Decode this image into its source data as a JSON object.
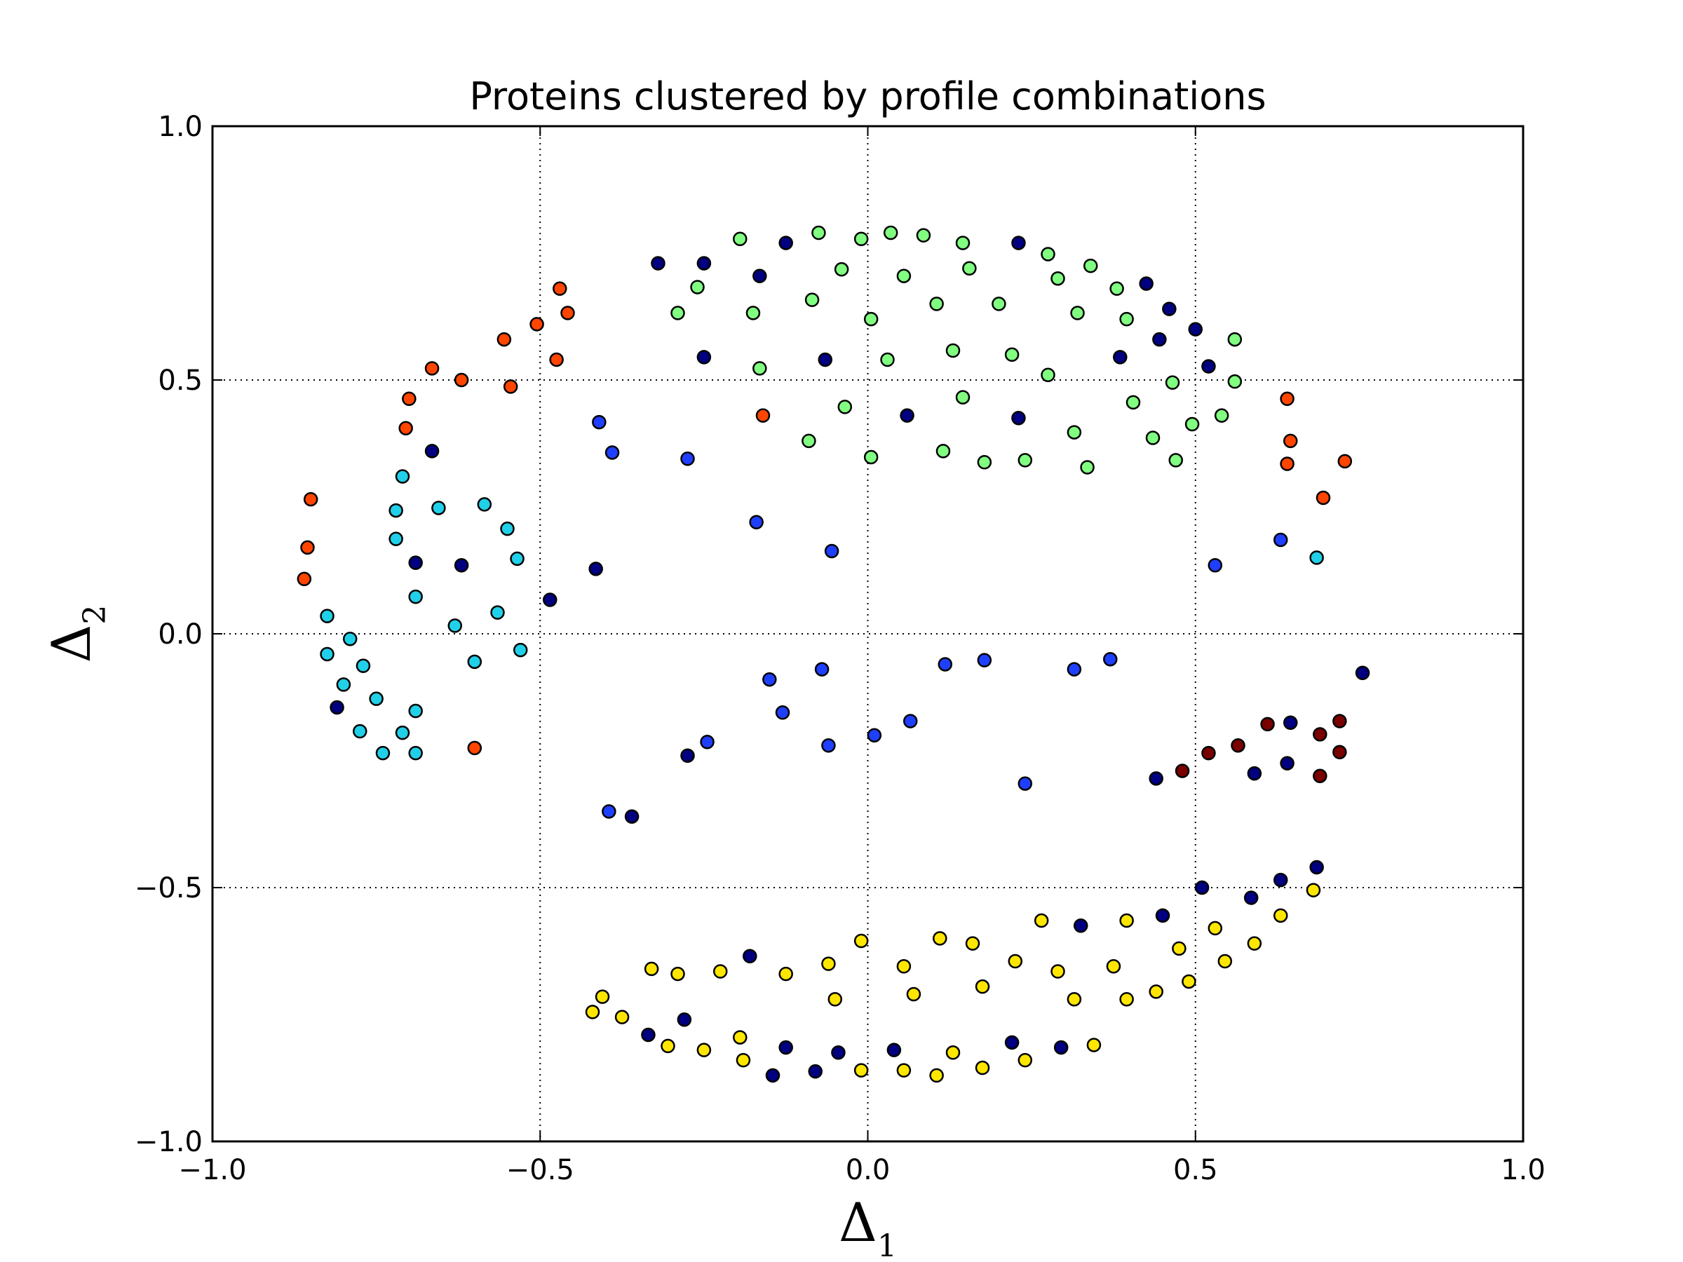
{
  "chart_data": {
    "type": "scatter",
    "title": "Proteins clustered by profile combinations",
    "xlabel": {
      "symbol": "Δ",
      "subscript": "1"
    },
    "ylabel": {
      "symbol": "Δ",
      "subscript": "2"
    },
    "xlim": [
      -1.0,
      1.0
    ],
    "ylim": [
      -1.0,
      1.0
    ],
    "xticks": [
      "−1.0",
      "−0.5",
      "0.0",
      "0.5",
      "1.0"
    ],
    "yticks": [
      "−1.0",
      "−0.5",
      "0.0",
      "0.5",
      "1.0"
    ],
    "xtick_values": [
      -1.0,
      -0.5,
      0.0,
      0.5,
      1.0
    ],
    "ytick_values": [
      -1.0,
      -0.5,
      0.0,
      0.5,
      1.0
    ],
    "grid": true,
    "series": [
      {
        "color": "#ff4500",
        "points": [
          [
            -0.85,
            0.265
          ],
          [
            -0.855,
            0.17
          ],
          [
            -0.86,
            0.108
          ],
          [
            -0.7,
            0.463
          ],
          [
            -0.705,
            0.405
          ],
          [
            -0.665,
            0.523
          ],
          [
            -0.62,
            0.5
          ],
          [
            -0.555,
            0.58
          ],
          [
            -0.545,
            0.487
          ],
          [
            -0.505,
            0.61
          ],
          [
            -0.47,
            0.68
          ],
          [
            -0.458,
            0.632
          ],
          [
            -0.475,
            0.54
          ],
          [
            -0.16,
            0.43
          ],
          [
            0.64,
            0.463
          ],
          [
            0.645,
            0.38
          ],
          [
            0.64,
            0.335
          ],
          [
            0.695,
            0.268
          ],
          [
            0.728,
            0.34
          ],
          [
            -0.6,
            -0.225
          ]
        ]
      },
      {
        "color": "#80ff80",
        "points": [
          [
            -0.195,
            0.778
          ],
          [
            -0.075,
            0.79
          ],
          [
            -0.01,
            0.778
          ],
          [
            0.035,
            0.79
          ],
          [
            0.085,
            0.785
          ],
          [
            0.145,
            0.77
          ],
          [
            -0.26,
            0.683
          ],
          [
            -0.29,
            0.632
          ],
          [
            -0.175,
            0.632
          ],
          [
            -0.085,
            0.658
          ],
          [
            -0.04,
            0.718
          ],
          [
            0.055,
            0.705
          ],
          [
            0.155,
            0.72
          ],
          [
            0.275,
            0.748
          ],
          [
            0.29,
            0.7
          ],
          [
            0.34,
            0.725
          ],
          [
            0.38,
            0.68
          ],
          [
            0.2,
            0.65
          ],
          [
            0.105,
            0.65
          ],
          [
            0.005,
            0.62
          ],
          [
            -0.165,
            0.523
          ],
          [
            0.03,
            0.54
          ],
          [
            0.13,
            0.558
          ],
          [
            0.22,
            0.55
          ],
          [
            0.275,
            0.51
          ],
          [
            0.395,
            0.62
          ],
          [
            0.32,
            0.632
          ],
          [
            0.56,
            0.58
          ],
          [
            0.465,
            0.495
          ],
          [
            0.56,
            0.497
          ],
          [
            0.405,
            0.456
          ],
          [
            0.54,
            0.43
          ],
          [
            0.495,
            0.413
          ],
          [
            -0.035,
            0.447
          ],
          [
            0.145,
            0.466
          ],
          [
            -0.09,
            0.38
          ],
          [
            0.115,
            0.36
          ],
          [
            0.315,
            0.397
          ],
          [
            0.435,
            0.386
          ],
          [
            0.005,
            0.348
          ],
          [
            0.178,
            0.338
          ],
          [
            0.24,
            0.342
          ],
          [
            0.335,
            0.328
          ],
          [
            0.47,
            0.342
          ]
        ]
      },
      {
        "color": "#000080",
        "points": [
          [
            -0.32,
            0.73
          ],
          [
            -0.25,
            0.73
          ],
          [
            -0.165,
            0.705
          ],
          [
            -0.125,
            0.77
          ],
          [
            0.23,
            0.77
          ],
          [
            0.425,
            0.69
          ],
          [
            0.46,
            0.64
          ],
          [
            0.445,
            0.58
          ],
          [
            0.385,
            0.545
          ],
          [
            0.5,
            0.6
          ],
          [
            0.52,
            0.527
          ],
          [
            -0.25,
            0.545
          ],
          [
            -0.065,
            0.54
          ],
          [
            0.06,
            0.43
          ],
          [
            0.23,
            0.425
          ],
          [
            -0.665,
            0.36
          ],
          [
            -0.69,
            0.14
          ],
          [
            -0.62,
            0.135
          ],
          [
            -0.415,
            0.128
          ],
          [
            -0.485,
            0.067
          ],
          [
            -0.81,
            -0.145
          ],
          [
            -0.275,
            -0.24
          ],
          [
            -0.36,
            -0.36
          ],
          [
            0.44,
            -0.285
          ],
          [
            0.59,
            -0.275
          ],
          [
            0.64,
            -0.255
          ],
          [
            0.645,
            -0.175
          ],
          [
            0.755,
            -0.077
          ],
          [
            0.685,
            -0.46
          ],
          [
            0.63,
            -0.485
          ],
          [
            0.585,
            -0.52
          ],
          [
            0.51,
            -0.5
          ],
          [
            0.45,
            -0.555
          ],
          [
            0.325,
            -0.575
          ],
          [
            -0.18,
            -0.635
          ],
          [
            -0.28,
            -0.76
          ],
          [
            -0.335,
            -0.79
          ],
          [
            -0.125,
            -0.815
          ],
          [
            -0.045,
            -0.825
          ],
          [
            0.04,
            -0.82
          ],
          [
            0.22,
            -0.805
          ],
          [
            0.295,
            -0.815
          ],
          [
            -0.145,
            -0.87
          ],
          [
            -0.08,
            -0.862
          ]
        ]
      },
      {
        "color": "#1f3fff",
        "points": [
          [
            -0.41,
            0.417
          ],
          [
            -0.39,
            0.357
          ],
          [
            -0.275,
            0.345
          ],
          [
            -0.17,
            0.22
          ],
          [
            -0.055,
            0.163
          ],
          [
            -0.15,
            -0.09
          ],
          [
            -0.07,
            -0.07
          ],
          [
            0.118,
            -0.06
          ],
          [
            0.178,
            -0.052
          ],
          [
            0.315,
            -0.07
          ],
          [
            0.37,
            -0.05
          ],
          [
            -0.13,
            -0.155
          ],
          [
            0.065,
            -0.172
          ],
          [
            -0.06,
            -0.22
          ],
          [
            0.01,
            -0.2
          ],
          [
            -0.245,
            -0.213
          ],
          [
            0.24,
            -0.295
          ],
          [
            -0.395,
            -0.35
          ],
          [
            0.53,
            0.135
          ],
          [
            0.63,
            0.185
          ]
        ]
      },
      {
        "color": "#20d0e8",
        "points": [
          [
            -0.71,
            0.31
          ],
          [
            -0.72,
            0.243
          ],
          [
            -0.655,
            0.248
          ],
          [
            -0.585,
            0.255
          ],
          [
            -0.55,
            0.207
          ],
          [
            -0.72,
            0.187
          ],
          [
            -0.535,
            0.148
          ],
          [
            -0.69,
            0.073
          ],
          [
            -0.825,
            0.035
          ],
          [
            -0.63,
            0.016
          ],
          [
            -0.565,
            0.042
          ],
          [
            -0.79,
            -0.01
          ],
          [
            -0.825,
            -0.04
          ],
          [
            -0.77,
            -0.063
          ],
          [
            -0.6,
            -0.055
          ],
          [
            -0.53,
            -0.032
          ],
          [
            -0.8,
            -0.1
          ],
          [
            -0.75,
            -0.128
          ],
          [
            -0.69,
            -0.152
          ],
          [
            -0.775,
            -0.192
          ],
          [
            -0.71,
            -0.195
          ],
          [
            -0.74,
            -0.235
          ],
          [
            -0.69,
            -0.235
          ],
          [
            0.685,
            0.15
          ]
        ]
      },
      {
        "color": "#7a0000",
        "points": [
          [
            0.48,
            -0.27
          ],
          [
            0.52,
            -0.235
          ],
          [
            0.565,
            -0.22
          ],
          [
            0.61,
            -0.178
          ],
          [
            0.69,
            -0.198
          ],
          [
            0.72,
            -0.172
          ],
          [
            0.72,
            -0.233
          ],
          [
            0.69,
            -0.28
          ]
        ]
      },
      {
        "color": "#ffe600",
        "points": [
          [
            -0.42,
            -0.745
          ],
          [
            -0.405,
            -0.715
          ],
          [
            -0.375,
            -0.755
          ],
          [
            -0.33,
            -0.66
          ],
          [
            -0.29,
            -0.67
          ],
          [
            -0.225,
            -0.665
          ],
          [
            -0.305,
            -0.812
          ],
          [
            -0.25,
            -0.82
          ],
          [
            -0.195,
            -0.795
          ],
          [
            -0.19,
            -0.84
          ],
          [
            -0.125,
            -0.67
          ],
          [
            -0.06,
            -0.65
          ],
          [
            -0.05,
            -0.72
          ],
          [
            -0.01,
            -0.605
          ],
          [
            0.055,
            -0.655
          ],
          [
            0.07,
            -0.71
          ],
          [
            0.11,
            -0.6
          ],
          [
            0.16,
            -0.61
          ],
          [
            0.175,
            -0.695
          ],
          [
            0.225,
            -0.645
          ],
          [
            0.265,
            -0.565
          ],
          [
            0.29,
            -0.665
          ],
          [
            0.315,
            -0.72
          ],
          [
            0.345,
            -0.81
          ],
          [
            0.375,
            -0.655
          ],
          [
            0.395,
            -0.565
          ],
          [
            0.395,
            -0.72
          ],
          [
            0.44,
            -0.705
          ],
          [
            0.475,
            -0.62
          ],
          [
            0.49,
            -0.685
          ],
          [
            0.53,
            -0.58
          ],
          [
            0.545,
            -0.645
          ],
          [
            0.59,
            -0.61
          ],
          [
            0.63,
            -0.555
          ],
          [
            0.68,
            -0.505
          ],
          [
            -0.01,
            -0.86
          ],
          [
            0.055,
            -0.86
          ],
          [
            0.105,
            -0.87
          ],
          [
            0.13,
            -0.825
          ],
          [
            0.175,
            -0.855
          ],
          [
            0.24,
            -0.84
          ]
        ]
      }
    ]
  }
}
